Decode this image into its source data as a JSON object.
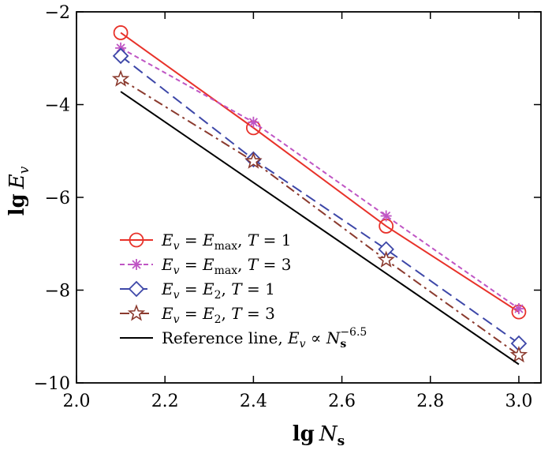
{
  "chart_data": {
    "type": "line",
    "xlabel": {
      "main": "lg",
      "var": "N",
      "sub": "s"
    },
    "ylabel": {
      "main": "lg",
      "var": "E",
      "sub": "v"
    },
    "xlim": [
      2.0,
      3.05
    ],
    "ylim": [
      -10,
      -2
    ],
    "xticks": [
      2.0,
      2.2,
      2.4,
      2.6,
      2.8,
      3.0
    ],
    "xtick_labels": [
      "2.0",
      "2.2",
      "2.4",
      "2.6",
      "2.8",
      "3.0"
    ],
    "yticks": [
      -10,
      -8,
      -6,
      -4,
      -2
    ],
    "ytick_labels": [
      "−10",
      "−8",
      "−6",
      "−4",
      "−2"
    ],
    "grid": false,
    "legend_position": "bottom-left",
    "x": [
      2.1,
      2.4,
      2.7,
      3.0
    ],
    "series": [
      {
        "id": "emax-t1",
        "legend": {
          "lhs": "E",
          "lhs_sub": "v",
          "rhs": "E",
          "rhs_sub": "max",
          "param": "T",
          "value": "1"
        },
        "values": [
          -2.45,
          -4.5,
          -6.62,
          -8.47
        ],
        "color": "#e8322a",
        "dash": "",
        "marker": "circle"
      },
      {
        "id": "emax-t3",
        "legend": {
          "lhs": "E",
          "lhs_sub": "v",
          "rhs": "E",
          "rhs_sub": "max",
          "param": "T",
          "value": "3"
        },
        "values": [
          -2.78,
          -4.38,
          -6.4,
          -8.4
        ],
        "color": "#bf55c4",
        "dash": "6,4",
        "marker": "asterisk"
      },
      {
        "id": "e2-t1",
        "legend": {
          "lhs": "E",
          "lhs_sub": "v",
          "rhs": "E",
          "rhs_sub": "2",
          "param": "T",
          "value": "1"
        },
        "values": [
          -2.95,
          -5.18,
          -7.12,
          -9.15
        ],
        "color": "#3d47a8",
        "dash": "14,7",
        "marker": "diamond"
      },
      {
        "id": "e2-t3",
        "legend": {
          "lhs": "E",
          "lhs_sub": "v",
          "rhs": "E",
          "rhs_sub": "2",
          "param": "T",
          "value": "3"
        },
        "values": [
          -3.45,
          -5.22,
          -7.35,
          -9.4
        ],
        "color": "#8b3a2e",
        "dash": "12,5,3,5",
        "marker": "star"
      },
      {
        "id": "reference",
        "legend": {
          "prefix": "Reference line, ",
          "lhs": "E",
          "lhs_sub": "v",
          "prop": " ∝ ",
          "rhs": "N",
          "rhs_sub": "s",
          "rhs_sup": "−6.5"
        },
        "x": [
          2.1,
          3.0
        ],
        "values": [
          -3.72,
          -9.6
        ],
        "color": "#000000",
        "dash": "",
        "marker": "none"
      }
    ]
  }
}
